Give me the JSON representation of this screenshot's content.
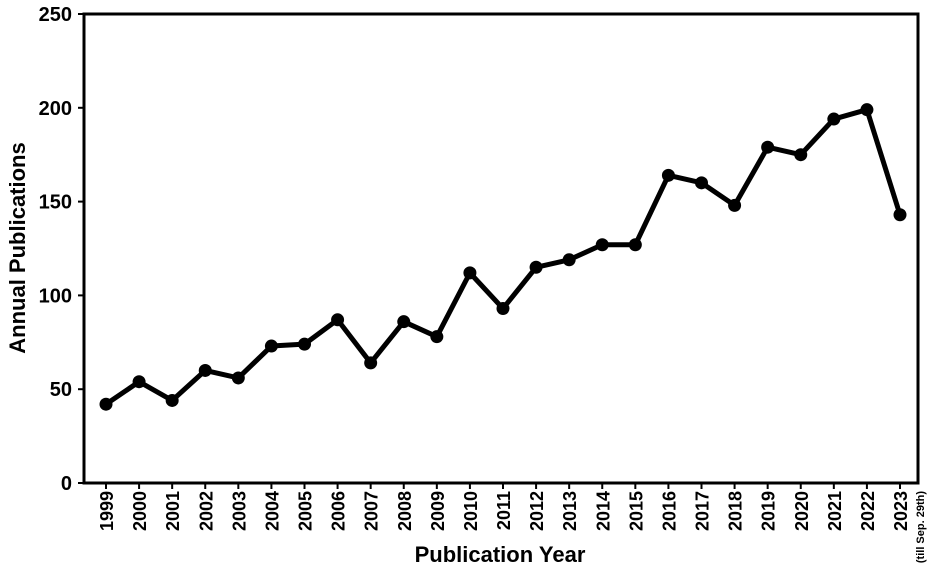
{
  "chart_data": {
    "type": "line",
    "title": "",
    "xlabel": "Publication Year",
    "ylabel": "Annual Publications",
    "ylim": [
      0,
      250
    ],
    "yticks": [
      0,
      50,
      100,
      150,
      200,
      250
    ],
    "grid": false,
    "legend": "none",
    "categories": [
      "1999",
      "2000",
      "2001",
      "2002",
      "2003",
      "2004",
      "2005",
      "2006",
      "2007",
      "2008",
      "2009",
      "2010",
      "2011",
      "2012",
      "2013",
      "2014",
      "2015",
      "2016",
      "2017",
      "2018",
      "2019",
      "2020",
      "2021",
      "2022",
      "2023"
    ],
    "category_notes": {
      "2023": "(till Sep. 29th)"
    },
    "series": [
      {
        "values": [
          42,
          54,
          44,
          60,
          56,
          73,
          74,
          87,
          64,
          86,
          78,
          112,
          93,
          115,
          119,
          127,
          127,
          164,
          160,
          148,
          179,
          175,
          194,
          199,
          143
        ],
        "color": "#000000"
      }
    ]
  }
}
